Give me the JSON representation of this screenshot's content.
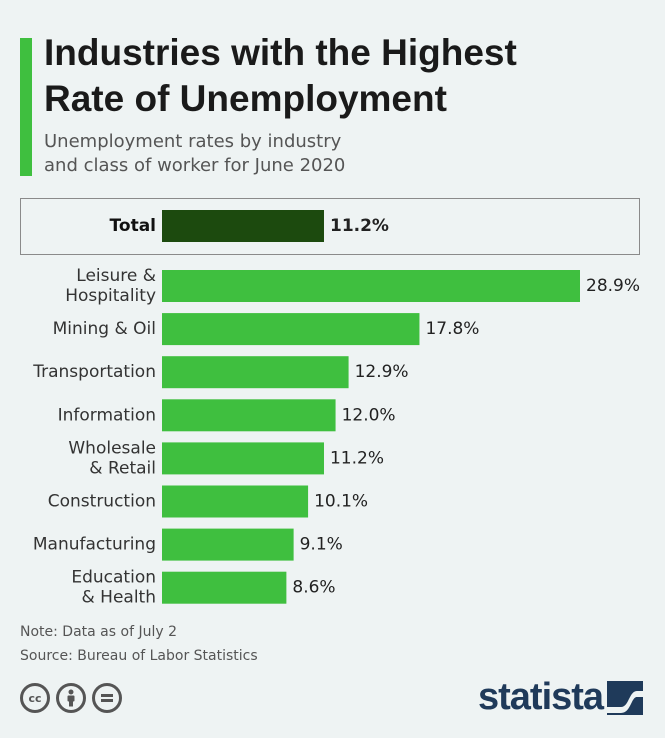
{
  "header": {
    "title_line1": "Industries with the Highest",
    "title_line2": "Rate of Unemployment",
    "subtitle_line1": "Unemployment rates by industry",
    "subtitle_line2": "and class of worker for June 2020"
  },
  "colors": {
    "accent": "#3fbf3f",
    "total_bar": "#1c4a0e",
    "bar": "#3fbf3f",
    "brand": "#1f3a5a"
  },
  "chart_data": {
    "type": "bar",
    "orientation": "horizontal",
    "title": "Industries with the Highest Rate of Unemployment",
    "subtitle": "Unemployment rates by industry and class of worker for June 2020",
    "total": {
      "label": "Total",
      "value": 11.2,
      "value_label": "11.2%"
    },
    "categories": [
      [
        "Leisure &",
        "Hospitality"
      ],
      [
        "Mining & Oil"
      ],
      [
        "Transportation"
      ],
      [
        "Information"
      ],
      [
        "Wholesale",
        "& Retail"
      ],
      [
        "Construction"
      ],
      [
        "Manufacturing"
      ],
      [
        "Education",
        "& Health"
      ]
    ],
    "values": [
      28.9,
      17.8,
      12.9,
      12.0,
      11.2,
      10.1,
      9.1,
      8.6
    ],
    "value_labels": [
      "28.9%",
      "17.8%",
      "12.9%",
      "12.0%",
      "11.2%",
      "10.1%",
      "9.1%",
      "8.6%"
    ],
    "unit": "%",
    "xlim": [
      0,
      28.9
    ],
    "grid": false,
    "legend": false
  },
  "footer": {
    "note": "Note: Data as of July 2",
    "source": "Source: Bureau of Labor Statistics",
    "license_icons": [
      "cc-icon",
      "by-icon",
      "nd-icon"
    ],
    "brand": "statista"
  }
}
